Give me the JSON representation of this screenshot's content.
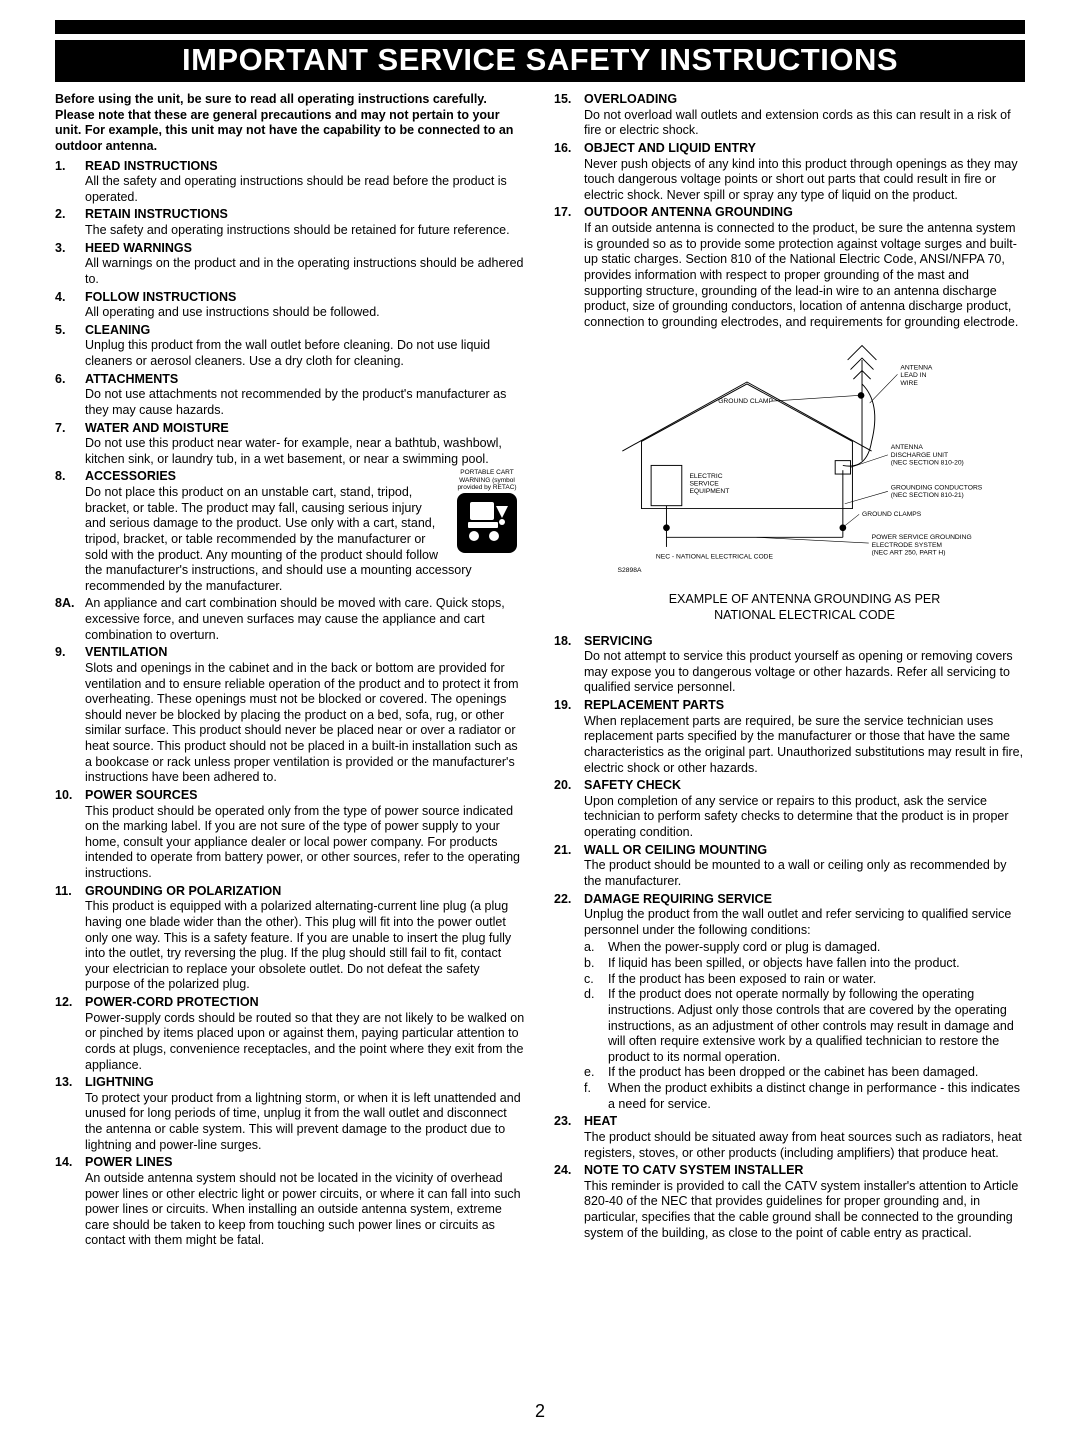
{
  "title": "IMPORTANT SERVICE SAFETY INSTRUCTIONS",
  "page_number": "2",
  "intro": "Before using the unit, be sure to read all operating instructions carefully. Please note that these are general precautions and may not pertain to your unit. For example, this unit may not have the capability to be connected to an outdoor antenna.",
  "cart_warning_caption": "PORTABLE CART WARNING (symbol provided by RETAC)",
  "diagram_caption_line1": "EXAMPLE OF ANTENNA GROUNDING AS PER",
  "diagram_caption_line2": "NATIONAL ELECTRICAL CODE",
  "diagram": {
    "labels": {
      "ground_clamp": "GROUND CLAMP",
      "antenna_lead": "ANTENNA LEAD IN WIRE",
      "antenna_discharge": "ANTENNA DISCHARGE UNIT (NEC SECTION 810-20)",
      "electric_service": "ELECTRIC SERVICE EQUIPMENT",
      "grounding_conductors": "GROUNDING CONDUCTORS (NEC SECTION 810-21)",
      "ground_clamps": "GROUND CLAMPS",
      "power_service": "POWER SERVICE GROUNDING ELECTRODE SYSTEM (NEC ART 250, PART H)",
      "nec": "NEC - NATIONAL ELECTRICAL CODE",
      "ref": "S2898A"
    }
  },
  "left_items": [
    {
      "n": "1.",
      "h": "READ INSTRUCTIONS",
      "t": "All the safety and operating instructions should be read before the product is operated."
    },
    {
      "n": "2.",
      "h": "RETAIN INSTRUCTIONS",
      "t": "The safety and operating instructions should be retained for future reference."
    },
    {
      "n": "3.",
      "h": "HEED WARNINGS",
      "t": "All warnings on the product and in the operating instructions should be adhered to."
    },
    {
      "n": "4.",
      "h": "FOLLOW INSTRUCTIONS",
      "t": "All operating and use instructions should be followed."
    },
    {
      "n": "5.",
      "h": "CLEANING",
      "t": "Unplug this product from the wall outlet before cleaning. Do not use liquid cleaners or aerosol cleaners. Use a dry cloth for cleaning."
    },
    {
      "n": "6.",
      "h": "ATTACHMENTS",
      "t": "Do not use attachments not recommended by the product's manufacturer as they may cause hazards."
    },
    {
      "n": "7.",
      "h": "WATER AND MOISTURE",
      "t": "Do not use this product near water- for example, near a bathtub, washbowl, kitchen sink, or laundry tub, in a wet basement, or near a swimming pool."
    },
    {
      "n": "8.",
      "h": "ACCESSORIES",
      "t": "Do not place this product on an unstable cart, stand, tripod, bracket, or table. The product may fall, causing serious injury and serious damage to the product. Use only with a cart, stand, tripod, bracket, or table recommended by the manufacturer or sold with the product. Any mounting of the product should follow the manufacturer's instructions, and should use a mounting accessory recommended by the manufacturer.",
      "has_icon": true
    },
    {
      "n": "8A.",
      "h": "",
      "t": "An appliance and cart combination should be moved with care. Quick stops, excessive force, and uneven surfaces may cause the appliance and cart combination to overturn."
    },
    {
      "n": "9.",
      "h": "VENTILATION",
      "t": "Slots and openings in the cabinet and in the back or bottom are provided for ventilation and to ensure reliable operation of the product and to protect it from overheating. These openings must not be blocked or covered. The openings should never be blocked by placing the product on a bed, sofa, rug, or other similar surface. This product should never be placed near or over a radiator or heat source. This product should not be placed in a built-in installation such as a bookcase or rack unless proper ventilation is provided or the manufacturer's instructions have been adhered to."
    },
    {
      "n": "10.",
      "h": "POWER SOURCES",
      "t": "This product should be operated only from the type of power source indicated on the marking label. If you are not sure of the type of power supply to your home, consult your appliance dealer or local power company. For products intended to operate from battery power, or other sources, refer to the operating instructions."
    },
    {
      "n": "11.",
      "h": "GROUNDING OR POLARIZATION",
      "t": "This product is equipped with a polarized alternating-current line plug (a plug having one blade wider than the other). This plug will fit into the power outlet only one way. This is a safety feature. If you are unable to insert the plug fully into the outlet, try reversing the plug. If the plug should still fail to fit, contact your electrician to replace your obsolete outlet. Do not defeat the safety purpose of the polarized plug."
    },
    {
      "n": "12.",
      "h": "POWER-CORD PROTECTION",
      "t": "Power-supply cords should be routed so that they are not likely to be walked on or pinched by items placed upon or against them, paying particular attention to cords at plugs, convenience receptacles, and the point where they exit from the appliance."
    },
    {
      "n": "13.",
      "h": "LIGHTNING",
      "t": "To protect your product from a lightning storm, or when it is left unattended and unused for long periods of time, unplug it from the wall outlet and disconnect the antenna or cable system. This will prevent damage to the product due to lightning and power-line surges."
    },
    {
      "n": "14.",
      "h": "POWER LINES",
      "t": "An outside antenna system should not be located in the vicinity of overhead power lines or other electric light or power circuits, or where it can fall into such power lines or circuits. When installing an outside antenna system, extreme care should be taken to keep from touching such power lines or circuits as contact with them might be fatal."
    }
  ],
  "right_items": [
    {
      "n": "15.",
      "h": "OVERLOADING",
      "t": "Do not overload wall outlets and extension cords as this can result in a risk of fire or electric shock."
    },
    {
      "n": "16.",
      "h": "OBJECT AND LIQUID ENTRY",
      "t": "Never push objects of any kind into this product through openings as they may touch dangerous voltage points or short out parts that could result in fire or electric shock. Never spill or spray any type of liquid on the product."
    },
    {
      "n": "17.",
      "h": "OUTDOOR ANTENNA GROUNDING",
      "t": "If an outside antenna is connected to the product, be sure the antenna system is grounded so as to provide some protection against voltage surges and built-up static charges. Section 810 of the National Electric Code, ANSI/NFPA 70, provides information with respect to proper grounding of the mast and supporting structure, grounding of the lead-in wire to an antenna discharge product, size of grounding conductors, location of antenna discharge product, connection to grounding electrodes, and requirements for grounding electrode.",
      "has_diagram": true
    },
    {
      "n": "18.",
      "h": "SERVICING",
      "t": "Do not attempt to service this product yourself as opening or removing covers may expose you to dangerous voltage or other hazards. Refer all servicing to qualified service personnel."
    },
    {
      "n": "19.",
      "h": "REPLACEMENT PARTS",
      "t": "When replacement parts are required, be sure the service technician uses replacement parts specified by the manufacturer or those that have the same characteristics as the original part. Unauthorized substitutions may result in fire, electric shock or other hazards."
    },
    {
      "n": "20.",
      "h": "SAFETY CHECK",
      "t": "Upon completion of any service or repairs to this product, ask the service technician to perform safety checks to determine that the product is in proper operating condition."
    },
    {
      "n": "21.",
      "h": "WALL OR CEILING MOUNTING",
      "t": "The product should be mounted to a wall or ceiling only as recommended by the manufacturer."
    },
    {
      "n": "22.",
      "h": "DAMAGE REQUIRING SERVICE",
      "t": "Unplug the product from the wall outlet and refer servicing to qualified service personnel under the following conditions:",
      "sub": [
        {
          "sn": "a.",
          "st": "When the power-supply cord or plug is damaged."
        },
        {
          "sn": "b.",
          "st": "If liquid has been spilled, or objects have fallen into the product."
        },
        {
          "sn": "c.",
          "st": "If the product has been exposed to rain or water."
        },
        {
          "sn": "d.",
          "st": "If the product does not operate normally by following the operating instructions. Adjust only those controls that are covered by the operating instructions, as an adjustment of other controls may result in damage and will often require extensive work by a qualified technician to restore the product to its normal operation."
        },
        {
          "sn": "e.",
          "st": "If the product has been dropped or the cabinet has been damaged."
        },
        {
          "sn": "f.",
          "st": "When the product exhibits a distinct change in performance - this indicates a need for service."
        }
      ]
    },
    {
      "n": "23.",
      "h": "HEAT",
      "t": "The product should be situated away from heat sources such as radiators, heat registers, stoves, or other products (including amplifiers) that produce heat."
    },
    {
      "n": "24.",
      "h": "NOTE TO CATV SYSTEM INSTALLER",
      "t": "This reminder is provided to call the CATV system installer's attention to Article 820-40 of the NEC that provides guidelines for proper grounding and, in particular, specifies that the cable ground shall be connected to the grounding system of the building, as close to the point of cable entry as practical."
    }
  ]
}
